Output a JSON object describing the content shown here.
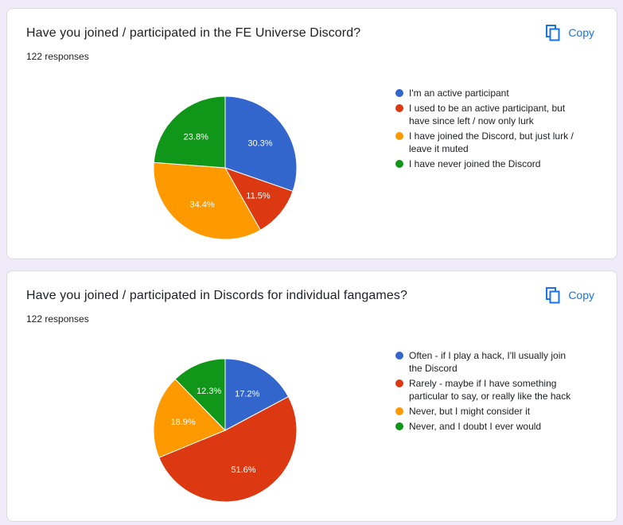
{
  "copy_label": "Copy",
  "questions": [
    {
      "title": "Have you joined / participated in the FE Universe Discord?",
      "responses": "122 responses",
      "chart_data": {
        "type": "pie",
        "slices": [
          {
            "label": "I'm an active participant",
            "display": "I'm an active participant",
            "value": 30.3,
            "pct_label": "30.3%",
            "color": "#3366cc"
          },
          {
            "label": "I used to be an active participant, but have since left / now only lurk",
            "display": "I used to be an active participant, but\nhave since left / now only lurk",
            "value": 11.5,
            "pct_label": "11.5%",
            "color": "#dc3912"
          },
          {
            "label": "I have joined the Discord, but just lurk / leave it muted",
            "display": "I have joined the Discord, but just lurk /\nleave it muted",
            "value": 34.4,
            "pct_label": "34.4%",
            "color": "#ff9900"
          },
          {
            "label": "I have never joined the Discord",
            "display": "I have never joined the Discord",
            "value": 23.8,
            "pct_label": "23.8%",
            "color": "#109618"
          }
        ],
        "legend_position": "right"
      }
    },
    {
      "title": "Have you joined / participated in Discords for individual fangames?",
      "responses": "122 responses",
      "chart_data": {
        "type": "pie",
        "slices": [
          {
            "label": "Often - if I play a hack, I'll usually join the Discord",
            "display": "Often - if I play a hack, I'll usually join\nthe Discord",
            "value": 17.2,
            "pct_label": "17.2%",
            "color": "#3366cc"
          },
          {
            "label": "Rarely - maybe if I have something particular to say, or really like the hack",
            "display": "Rarely - maybe if I have something\nparticular to say, or really like the hack",
            "value": 51.6,
            "pct_label": "51.6%",
            "color": "#dc3912"
          },
          {
            "label": "Never, but I might consider it",
            "display": "Never, but I might consider it",
            "value": 18.9,
            "pct_label": "18.9%",
            "color": "#ff9900"
          },
          {
            "label": "Never, and I doubt I ever would",
            "display": "Never, and I doubt I ever would",
            "value": 12.3,
            "pct_label": "12.3%",
            "color": "#109618"
          }
        ],
        "legend_position": "right"
      }
    }
  ]
}
